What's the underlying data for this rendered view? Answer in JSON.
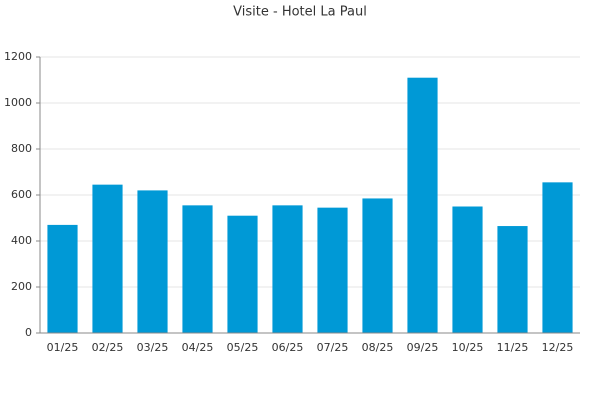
{
  "chart_data": {
    "type": "bar",
    "title": "Visite - Hotel La Paul",
    "categories": [
      "01/25",
      "02/25",
      "03/25",
      "04/25",
      "05/25",
      "06/25",
      "07/25",
      "08/25",
      "09/25",
      "10/25",
      "11/25",
      "12/25"
    ],
    "values": [
      470,
      645,
      620,
      555,
      510,
      555,
      545,
      585,
      1110,
      550,
      465,
      655
    ],
    "color": "#0099d6",
    "ylim": [
      0,
      1200
    ],
    "yticks": [
      0,
      200,
      400,
      600,
      800,
      1000,
      1200
    ],
    "grid": true
  }
}
